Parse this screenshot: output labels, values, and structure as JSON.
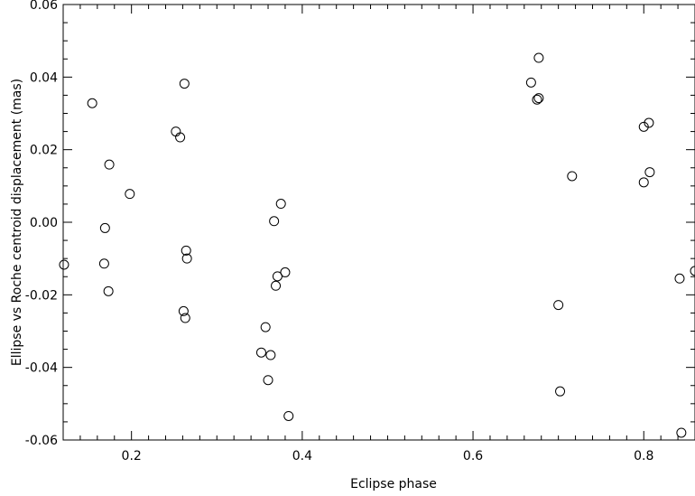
{
  "chart_data": {
    "type": "scatter",
    "xlabel": "Eclipse phase",
    "ylabel": "Ellipse vs Roche centroid displacement (mas)",
    "xlim": [
      0.12,
      0.86
    ],
    "ylim": [
      -0.06,
      0.06
    ],
    "x_tick_labels": [
      "0.2",
      "0.4",
      "0.6",
      "0.8"
    ],
    "x_tick_values": [
      0.2,
      0.4,
      0.6,
      0.8
    ],
    "y_tick_labels": [
      "-0.06",
      "-0.04",
      "-0.02",
      "0.00",
      "0.02",
      "0.04",
      "0.06"
    ],
    "y_tick_values": [
      -0.06,
      -0.04,
      -0.02,
      0.0,
      0.02,
      0.04,
      0.06
    ],
    "grid": false,
    "marker": "open-circle",
    "colors": {
      "marker_stroke": "#000000",
      "axis": "#000000",
      "background": "#ffffff"
    },
    "points": [
      {
        "x": 0.121,
        "y": -0.0117
      },
      {
        "x": 0.154,
        "y": 0.0328
      },
      {
        "x": 0.168,
        "y": -0.0114
      },
      {
        "x": 0.169,
        "y": -0.0016
      },
      {
        "x": 0.173,
        "y": -0.019
      },
      {
        "x": 0.174,
        "y": 0.0159
      },
      {
        "x": 0.198,
        "y": 0.0078
      },
      {
        "x": 0.252,
        "y": 0.025
      },
      {
        "x": 0.257,
        "y": 0.0234
      },
      {
        "x": 0.261,
        "y": -0.0245
      },
      {
        "x": 0.262,
        "y": 0.0382
      },
      {
        "x": 0.263,
        "y": -0.0264
      },
      {
        "x": 0.264,
        "y": -0.0078
      },
      {
        "x": 0.265,
        "y": -0.01
      },
      {
        "x": 0.352,
        "y": -0.0359
      },
      {
        "x": 0.357,
        "y": -0.0289
      },
      {
        "x": 0.36,
        "y": -0.0435
      },
      {
        "x": 0.363,
        "y": -0.0366
      },
      {
        "x": 0.367,
        "y": 0.0003
      },
      {
        "x": 0.369,
        "y": -0.0175
      },
      {
        "x": 0.371,
        "y": -0.0149
      },
      {
        "x": 0.375,
        "y": 0.0051
      },
      {
        "x": 0.38,
        "y": -0.0138
      },
      {
        "x": 0.384,
        "y": -0.0534
      },
      {
        "x": 0.668,
        "y": 0.0385
      },
      {
        "x": 0.675,
        "y": 0.0338
      },
      {
        "x": 0.677,
        "y": 0.0453
      },
      {
        "x": 0.677,
        "y": 0.0342
      },
      {
        "x": 0.7,
        "y": -0.0228
      },
      {
        "x": 0.702,
        "y": -0.0466
      },
      {
        "x": 0.716,
        "y": 0.0127
      },
      {
        "x": 0.8,
        "y": 0.011
      },
      {
        "x": 0.8,
        "y": 0.0263
      },
      {
        "x": 0.806,
        "y": 0.0274
      },
      {
        "x": 0.807,
        "y": 0.0138
      },
      {
        "x": 0.842,
        "y": -0.0155
      },
      {
        "x": 0.844,
        "y": -0.058
      },
      {
        "x": 0.86,
        "y": -0.0134
      }
    ]
  }
}
